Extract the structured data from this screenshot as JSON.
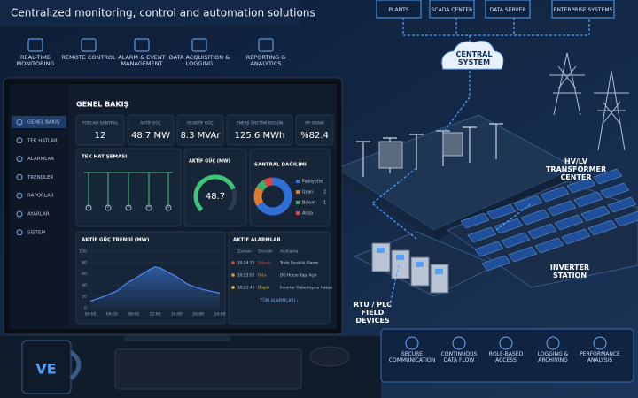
{
  "header": {
    "title": "Centralized monitoring, control and automation solutions"
  },
  "features_top": [
    "REAL-TIME MONITORING",
    "REMOTE CONTROL",
    "ALARM & EVENT MANAGEMENT",
    "DATA ACQUISITION & LOGGING",
    "REPORTING & ANALYTICS"
  ],
  "systems": [
    "PLANTS",
    "SCADA CENTER",
    "DATA SERVER",
    "ENTERPRISE SYSTEMS"
  ],
  "central": "CENTRAL SYSTEM",
  "site_labels": [
    "HV/LV TRANSFORMER CENTER",
    "INVERTER STATION",
    "RTU / PLC FIELD DEVICES"
  ],
  "features_bottom": [
    "SECURE COMMUNICATION",
    "CONTINUOUS DATA FLOW",
    "ROLE-BASED ACCESS",
    "LOGGING & ARCHIVING",
    "PERFORMANCE ANALYSIS"
  ],
  "dashboard": {
    "title": "GENEL BAKIŞ",
    "menu": [
      "GENEL BAKIŞ",
      "TEK HATLAR",
      "ALARMLAR",
      "TRENDLER",
      "RAPORLAR",
      "AYARLAR",
      "SİSTEM"
    ],
    "kpis": [
      {
        "label": "TOPLAM SANTRAL",
        "value": "12"
      },
      {
        "label": "AKTİF GÜÇ",
        "value": "48.7 MW"
      },
      {
        "label": "REAKTİF GÜÇ",
        "value": "8.3 MVAr"
      },
      {
        "label": "ENERJİ ÜRETİMİ BUGÜN",
        "value": "125.6 MWh"
      },
      {
        "label": "PR ORANI",
        "value": "%82.4"
      }
    ],
    "single_line": {
      "title": "TEK HAT ŞEMASI"
    },
    "gauge": {
      "title": "AKTİF GÜÇ (MW)",
      "value": 48.7,
      "range": [
        0,
        65
      ]
    },
    "distribution": {
      "title": "SANTRAL DAĞILIMI",
      "labels": [
        "Faaliyette",
        "Uyarı",
        "Bakım",
        "Arıza"
      ],
      "values": [
        8,
        2,
        1,
        1
      ],
      "count_labels": [
        null,
        "2",
        "1",
        null
      ],
      "colors": [
        "#2f6fd6",
        "#e07a2e",
        "#3fae6a",
        "#d64545"
      ]
    },
    "trend": {
      "title": "AKTİF GÜÇ TRENDİ (MW)",
      "x": [
        0,
        1,
        2,
        3,
        4,
        5,
        6,
        7,
        8,
        9,
        10,
        11,
        12,
        13,
        14,
        15,
        16,
        17,
        18,
        19,
        20,
        21,
        22,
        23,
        24
      ],
      "values": [
        12,
        15,
        18,
        22,
        26,
        30,
        38,
        45,
        50,
        56,
        62,
        68,
        72,
        70,
        65,
        60,
        55,
        48,
        42,
        38,
        35,
        32,
        30,
        28,
        26
      ],
      "xlim": [
        0,
        24
      ],
      "ylim": [
        0,
        100
      ],
      "yticks": [
        0,
        20,
        40,
        60,
        80,
        100
      ],
      "xticks": [
        {
          "value": 0,
          "label": "00:00"
        },
        {
          "value": 4,
          "label": "04:00"
        },
        {
          "value": 8,
          "label": "08:00"
        },
        {
          "value": 12,
          "label": "12:00"
        },
        {
          "value": 16,
          "label": "16:00"
        },
        {
          "value": 20,
          "label": "20:00"
        },
        {
          "value": 24,
          "label": "24:00"
        }
      ],
      "color": "#4a8cf0"
    },
    "alarms": {
      "title": "AKTİF ALARMLAR",
      "columns": [
        "Zaman",
        "Öncelik",
        "Açıklama"
      ],
      "rows": [
        [
          "10:24:15",
          "Yüksek",
          "Trafo Sıcaklık Alarmı"
        ],
        [
          "10:23:02",
          "Orta",
          "DG Hücre Kapı Açık"
        ],
        [
          "10:21:45",
          "Düşük",
          "İnverter Haberleşme Hatası"
        ]
      ],
      "link": "TÜM ALARMLARI ›"
    }
  }
}
